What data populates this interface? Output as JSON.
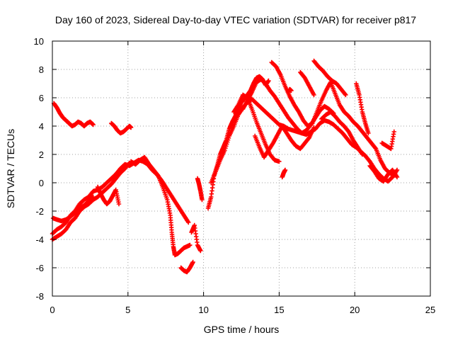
{
  "chart_data": {
    "type": "scatter",
    "title": "Day 160 of 2023, Sidereal Day-to-day VTEC variation (SDTVAR) for receiver p817",
    "xlabel": "GPS time / hours",
    "ylabel": "SDTVAR / TECUs",
    "xlim": [
      0,
      25
    ],
    "ylim": [
      -8,
      10
    ],
    "x_ticks": [
      "0",
      "5",
      "10",
      "15",
      "20",
      "25"
    ],
    "y_ticks": [
      "-8",
      "-6",
      "-4",
      "-2",
      "0",
      "2",
      "4",
      "6",
      "8",
      "10"
    ],
    "grid": true,
    "marker": "+",
    "color": "#ff0000",
    "series": [
      {
        "name": "t1",
        "x": [
          0.0,
          0.3,
          0.6,
          0.9,
          1.2,
          1.5,
          1.8,
          2.1,
          2.4,
          2.7,
          3.0,
          3.3,
          3.6,
          3.9,
          4.2,
          4.5,
          4.8,
          5.1,
          5.4,
          5.7,
          6.0,
          6.3,
          6.6,
          6.9,
          7.2,
          7.5,
          7.8,
          8.1,
          8.4,
          8.7,
          9.0
        ],
        "y": [
          -3.6,
          -3.3,
          -3.1,
          -2.8,
          -2.3,
          -2.0,
          -1.5,
          -1.2,
          -1.0,
          -0.6,
          -0.5,
          -0.3,
          0.0,
          0.3,
          0.6,
          1.0,
          1.3,
          1.2,
          1.4,
          1.6,
          1.5,
          1.3,
          0.9,
          0.6,
          0.2,
          -0.3,
          -0.8,
          -1.3,
          -1.8,
          -2.3,
          -2.8
        ]
      },
      {
        "name": "t2",
        "x": [
          0.0,
          0.3,
          0.6,
          0.9,
          1.2,
          1.5,
          1.8,
          2.1,
          2.4,
          2.7,
          3.0,
          3.3,
          3.6,
          3.9,
          4.2,
          4.5,
          4.8,
          5.1
        ],
        "y": [
          -4.0,
          -3.8,
          -3.6,
          -3.3,
          -2.8,
          -2.5,
          -2.0,
          -1.7,
          -1.5,
          -1.2,
          -1.0,
          -0.7,
          -0.4,
          -0.1,
          0.3,
          0.7,
          1.0,
          1.4
        ]
      },
      {
        "name": "t3",
        "x": [
          0.05,
          0.3,
          0.6,
          0.9,
          1.2,
          1.5,
          1.8,
          2.1,
          2.4,
          2.7
        ],
        "y": [
          -2.5,
          -2.6,
          -2.7,
          -2.6,
          -2.4,
          -2.1,
          -1.8,
          -1.6,
          -1.3,
          -1.0
        ]
      },
      {
        "name": "t4",
        "x": [
          0.1,
          0.3,
          0.5,
          0.7,
          0.9,
          1.1,
          1.3,
          1.5,
          1.7,
          1.9,
          2.1,
          2.3,
          2.5,
          2.7
        ],
        "y": [
          5.6,
          5.3,
          4.9,
          4.6,
          4.4,
          4.2,
          4.0,
          4.1,
          4.3,
          4.2,
          4.0,
          4.2,
          4.3,
          4.1
        ]
      },
      {
        "name": "t5",
        "x": [
          3.9,
          4.1,
          4.3,
          4.5,
          4.7,
          4.9,
          5.1,
          5.2
        ],
        "y": [
          4.2,
          4.0,
          3.7,
          3.5,
          3.6,
          3.8,
          4.0,
          3.9
        ]
      },
      {
        "name": "t6",
        "x": [
          3.0,
          3.2,
          3.4,
          3.6,
          3.8,
          4.0,
          4.2,
          4.4
        ],
        "y": [
          -0.3,
          -0.8,
          -1.2,
          -1.5,
          -1.3,
          -0.9,
          -0.5,
          -1.5
        ]
      },
      {
        "name": "t7",
        "x": [
          5.2,
          5.5,
          5.8,
          6.1,
          6.4,
          6.7,
          7.0,
          7.3,
          7.6,
          7.8,
          7.9,
          8.0,
          8.1,
          8.3,
          8.5,
          8.7,
          8.9,
          9.1
        ],
        "y": [
          1.5,
          1.3,
          1.6,
          1.8,
          1.3,
          0.9,
          0.5,
          -0.3,
          -1.2,
          -2.3,
          -3.5,
          -4.5,
          -5.1,
          -5.0,
          -4.8,
          -4.6,
          -4.5,
          -4.4
        ]
      },
      {
        "name": "t8",
        "x": [
          8.5,
          8.7,
          8.9,
          9.1,
          9.3
        ],
        "y": [
          -6.0,
          -6.2,
          -6.3,
          -6.0,
          -5.6
        ]
      },
      {
        "name": "t9",
        "x": [
          9.2,
          9.4,
          9.6,
          9.8
        ],
        "y": [
          -3.5,
          -3.0,
          -4.4,
          -4.8
        ]
      },
      {
        "name": "t10",
        "x": [
          9.6,
          9.7,
          9.8,
          9.9
        ],
        "y": [
          0.3,
          -0.1,
          -0.6,
          -1.2
        ]
      },
      {
        "name": "t11",
        "x": [
          10.3,
          10.5,
          10.7,
          10.9,
          11.1,
          11.3,
          11.5,
          11.7,
          11.9,
          12.1,
          12.3,
          12.5,
          12.7,
          12.9,
          13.1,
          13.3,
          13.5,
          13.7,
          13.9,
          14.1,
          14.3
        ],
        "y": [
          -1.8,
          -1.0,
          0.5,
          1.2,
          2.0,
          2.5,
          3.0,
          3.8,
          4.3,
          4.7,
          5.2,
          5.7,
          5.9,
          6.2,
          6.5,
          7.0,
          7.4,
          7.5,
          7.3,
          6.9,
          7.2
        ]
      },
      {
        "name": "t12",
        "x": [
          10.5,
          10.8,
          11.1,
          11.4,
          11.7,
          12.0,
          12.3,
          12.6,
          12.9,
          13.2,
          13.5,
          13.8,
          14.1,
          14.4,
          14.7,
          15.0,
          15.3,
          15.6,
          15.9,
          16.2,
          16.5,
          16.8,
          17.1,
          17.4,
          17.7,
          18.0,
          18.3,
          18.6,
          18.9,
          19.2,
          19.5,
          19.8,
          20.1,
          20.4,
          20.7,
          21.0,
          21.3,
          21.6,
          21.9,
          22.2,
          22.5,
          22.8
        ],
        "y": [
          0.0,
          0.8,
          1.6,
          2.3,
          3.3,
          4.0,
          4.8,
          5.3,
          5.7,
          5.9,
          5.6,
          5.3,
          5.0,
          4.7,
          4.4,
          4.1,
          4.0,
          3.8,
          3.7,
          3.6,
          3.5,
          3.4,
          3.6,
          3.8,
          4.2,
          4.4,
          4.3,
          4.1,
          3.8,
          3.5,
          3.1,
          2.7,
          2.5,
          2.2,
          1.9,
          1.5,
          1.0,
          0.6,
          0.3,
          0.1,
          0.4,
          0.9
        ]
      },
      {
        "name": "t13",
        "x": [
          12.0,
          12.3,
          12.6,
          12.9,
          13.2,
          13.5,
          13.8,
          14.1,
          14.4,
          14.7,
          15.0
        ],
        "y": [
          5.0,
          5.5,
          6.2,
          6.0,
          5.2,
          4.3,
          3.5,
          2.7,
          2.0,
          1.6,
          1.5
        ]
      },
      {
        "name": "t14",
        "x": [
          12.6,
          12.9,
          13.2,
          13.5,
          13.8,
          14.1,
          14.4,
          14.7,
          15.0,
          15.3,
          15.6,
          15.9,
          16.2,
          16.5,
          16.8,
          17.1,
          17.4,
          17.7,
          18.0,
          18.3,
          18.6
        ],
        "y": [
          5.2,
          5.8,
          6.4,
          7.1,
          7.3,
          7.0,
          6.5,
          6.1,
          5.6,
          5.1,
          4.6,
          4.2,
          3.8,
          3.5,
          3.7,
          4.1,
          4.6,
          5.1,
          5.4,
          5.2,
          4.9
        ]
      },
      {
        "name": "t15",
        "x": [
          13.4,
          13.7,
          14.0,
          14.3,
          14.6,
          14.9,
          15.2,
          15.5,
          15.8,
          16.1,
          16.4,
          16.7,
          17.0,
          17.3
        ],
        "y": [
          3.3,
          2.5,
          1.8,
          2.3,
          2.8,
          3.4,
          4.0,
          3.5,
          3.0,
          2.6,
          2.4,
          2.8,
          3.2,
          3.9
        ]
      },
      {
        "name": "t16",
        "x": [
          14.5,
          14.8,
          15.1,
          15.4,
          15.7,
          16.0,
          16.3,
          16.6,
          16.9,
          17.2,
          17.5,
          17.8,
          18.1,
          18.4,
          18.7,
          19.0,
          19.3,
          19.6,
          19.9,
          20.2,
          20.5,
          20.8,
          21.1,
          21.4,
          21.7,
          22.0,
          22.3,
          22.6
        ],
        "y": [
          8.5,
          8.2,
          7.6,
          6.8,
          6.1,
          5.5,
          5.0,
          4.4,
          4.0,
          4.2,
          5.0,
          5.8,
          6.5,
          7.1,
          6.3,
          5.5,
          5.0,
          4.7,
          4.3,
          4.0,
          3.6,
          3.2,
          2.8,
          2.4,
          1.6,
          1.0,
          0.7,
          0.5
        ]
      },
      {
        "name": "t17",
        "x": [
          15.2,
          15.3,
          15.4
        ],
        "y": [
          0.4,
          0.7,
          0.9
        ]
      },
      {
        "name": "t18",
        "x": [
          15.6,
          15.7,
          15.8
        ],
        "y": [
          6.4,
          6.6,
          6.5
        ]
      },
      {
        "name": "t19",
        "x": [
          16.4,
          16.7,
          17.0,
          17.3
        ],
        "y": [
          7.8,
          7.4,
          6.8,
          6.2
        ]
      },
      {
        "name": "t20",
        "x": [
          17.3,
          17.6,
          17.9,
          18.2,
          18.5,
          18.8,
          19.1,
          19.4
        ],
        "y": [
          8.6,
          8.2,
          7.9,
          7.5,
          7.2,
          7.0,
          6.6,
          6.2
        ]
      },
      {
        "name": "t21",
        "x": [
          17.8,
          18.1,
          18.4,
          18.7,
          19.0,
          19.3,
          19.6,
          19.9,
          20.2,
          20.5
        ],
        "y": [
          4.5,
          4.8,
          5.0,
          4.7,
          4.3,
          4.0,
          3.6,
          3.0,
          2.5,
          2.0
        ]
      },
      {
        "name": "t22",
        "x": [
          20.1,
          20.3,
          20.5,
          20.7,
          20.9
        ],
        "y": [
          7.0,
          6.2,
          5.0,
          4.2,
          3.5
        ]
      },
      {
        "name": "t23",
        "x": [
          21.0,
          21.3,
          21.6,
          21.9,
          22.2,
          22.5,
          22.8
        ],
        "y": [
          1.2,
          0.8,
          0.3,
          0.1,
          0.6,
          0.9,
          0.4
        ]
      },
      {
        "name": "t24",
        "x": [
          21.8,
          22.1,
          22.4,
          22.6
        ],
        "y": [
          2.8,
          2.6,
          2.4,
          3.6
        ]
      }
    ]
  }
}
